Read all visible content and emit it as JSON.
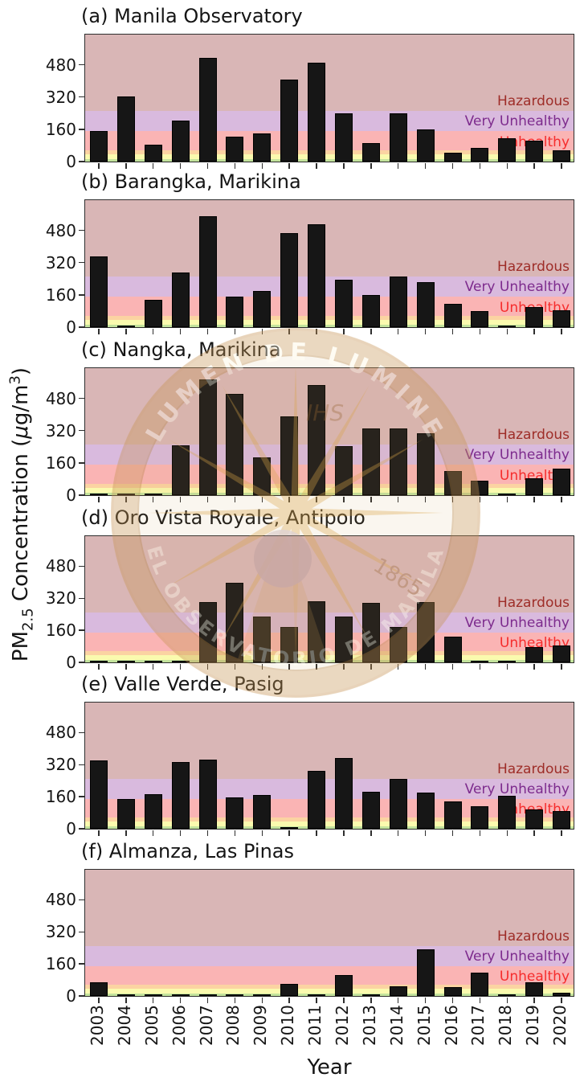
{
  "figure": {
    "xlabel": "Year",
    "ylabel_parts": {
      "p1": "PM",
      "sub": "2.5",
      "p2": " Concentration (",
      "mu": "μ",
      "p3": "g/m",
      "sup": "3",
      "p4": ")"
    },
    "yticks": [
      0,
      160,
      320,
      480
    ],
    "ymax": 630
  },
  "aqi_bands": [
    {
      "key": "good",
      "from": 0,
      "to": 12,
      "color": "#c3e39c",
      "edge": "#9dc069"
    },
    {
      "key": "moderate",
      "from": 12,
      "to": 35,
      "color": "#fafaae",
      "edge": "#e6c355"
    },
    {
      "key": "usg",
      "from": 35,
      "to": 55,
      "color": "#fbd3a2",
      "edge": "#ee9c50"
    },
    {
      "key": "unhealthy",
      "from": 55,
      "to": 150,
      "color": "#fab4b4",
      "edge": "#e3506a",
      "label": "Unhealthy",
      "label_color": "#f62c2c"
    },
    {
      "key": "very-unhealthy",
      "from": 150,
      "to": 250,
      "color": "#d9bade",
      "edge": "#9c4f9f",
      "label": "Very Unhealthy",
      "label_color": "#7d2b8d"
    },
    {
      "key": "hazardous",
      "from": 250,
      "to": 630,
      "color": "#d9b6b6",
      "edge": "",
      "label": "Hazardous",
      "label_color": "#9e2d28"
    }
  ],
  "chart_data": [
    {
      "type": "bar",
      "title": "(a) Manila Observatory",
      "categories": [
        "2003",
        "2004",
        "2005",
        "2006",
        "2007",
        "2008",
        "2009",
        "2010",
        "2011",
        "2012",
        "2013",
        "2014",
        "2015",
        "2016",
        "2017",
        "2018",
        "2019",
        "2020"
      ],
      "values": [
        150,
        325,
        85,
        205,
        515,
        125,
        140,
        405,
        490,
        240,
        90,
        240,
        158,
        45,
        68,
        115,
        102,
        56
      ],
      "ylim": [
        0,
        630
      ],
      "bar_color": "#161616"
    },
    {
      "type": "bar",
      "title": "(b) Barangka, Marikina",
      "categories": [
        "2003",
        "2004",
        "2005",
        "2006",
        "2007",
        "2008",
        "2009",
        "2010",
        "2011",
        "2012",
        "2013",
        "2014",
        "2015",
        "2016",
        "2017",
        "2018",
        "2019",
        "2020"
      ],
      "values": [
        350,
        5,
        135,
        270,
        550,
        150,
        180,
        465,
        510,
        235,
        160,
        250,
        222,
        115,
        80,
        4,
        100,
        82
      ],
      "ylim": [
        0,
        630
      ],
      "bar_color": "#161616"
    },
    {
      "type": "bar",
      "title": "(c) Nangka, Marikina",
      "categories": [
        "2003",
        "2004",
        "2005",
        "2006",
        "2007",
        "2008",
        "2009",
        "2010",
        "2011",
        "2012",
        "2013",
        "2014",
        "2015",
        "2016",
        "2017",
        "2018",
        "2019",
        "2020"
      ],
      "values": [
        3,
        3,
        8,
        248,
        573,
        503,
        186,
        390,
        545,
        242,
        330,
        330,
        308,
        121,
        70,
        4,
        85,
        131
      ],
      "ylim": [
        0,
        630
      ],
      "bar_color": "#161616"
    },
    {
      "type": "bar",
      "title": "(d) Oro Vista Royale, Antipolo",
      "categories": [
        "2003",
        "2004",
        "2005",
        "2006",
        "2007",
        "2008",
        "2009",
        "2010",
        "2011",
        "2012",
        "2013",
        "2014",
        "2015",
        "2016",
        "2017",
        "2018",
        "2019",
        "2020"
      ],
      "values": [
        3,
        3,
        3,
        4,
        300,
        396,
        227,
        178,
        305,
        227,
        297,
        175,
        300,
        128,
        2,
        4,
        77,
        85
      ],
      "ylim": [
        0,
        630
      ],
      "bar_color": "#161616"
    },
    {
      "type": "bar",
      "title": "(e) Valle Verde, Pasig",
      "categories": [
        "2003",
        "2004",
        "2005",
        "2006",
        "2007",
        "2008",
        "2009",
        "2010",
        "2011",
        "2012",
        "2013",
        "2014",
        "2015",
        "2016",
        "2017",
        "2018",
        "2019",
        "2020"
      ],
      "values": [
        340,
        148,
        172,
        335,
        345,
        155,
        167,
        5,
        288,
        352,
        185,
        247,
        182,
        136,
        113,
        165,
        97,
        87
      ],
      "ylim": [
        0,
        630
      ],
      "bar_color": "#161616"
    },
    {
      "type": "bar",
      "title": "(f) Almanza, Las Pinas",
      "categories": [
        "2003",
        "2004",
        "2005",
        "2006",
        "2007",
        "2008",
        "2009",
        "2010",
        "2011",
        "2012",
        "2013",
        "2014",
        "2015",
        "2016",
        "2017",
        "2018",
        "2019",
        "2020"
      ],
      "values": [
        70,
        2,
        2,
        2,
        2,
        2,
        3,
        62,
        2,
        103,
        4,
        47,
        232,
        43,
        118,
        4,
        70,
        15
      ],
      "ylim": [
        0,
        630
      ],
      "bar_color": "#161616"
    }
  ],
  "watermark": {
    "motto_top": "LUMEN DE LUMINE",
    "motto_bottom": "EL OBSERVATORIO DE MANILA",
    "year": "1865",
    "monogram": "IHS",
    "color": "#c8975a"
  }
}
